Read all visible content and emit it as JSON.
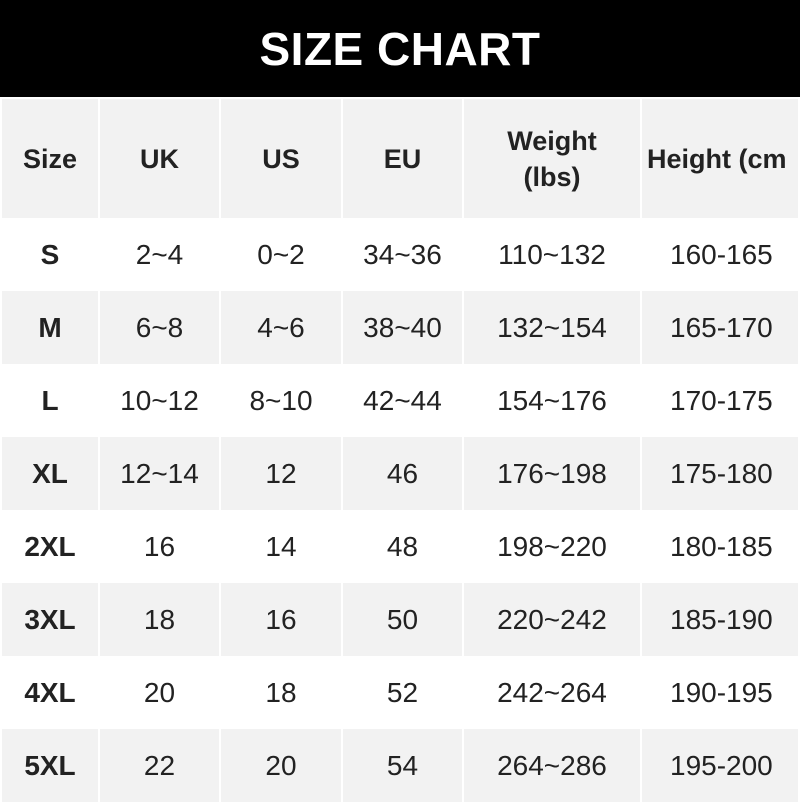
{
  "title": "SIZE CHART",
  "table": {
    "headers": [
      "Size",
      "UK",
      "US",
      "EU",
      "Weight\n(lbs)",
      "Height (cm"
    ],
    "rows": [
      [
        "S",
        "2~4",
        "0~2",
        "34~36",
        "110~132",
        "160-165"
      ],
      [
        "M",
        "6~8",
        "4~6",
        "38~40",
        "132~154",
        "165-170"
      ],
      [
        "L",
        "10~12",
        "8~10",
        "42~44",
        "154~176",
        "170-175"
      ],
      [
        "XL",
        "12~14",
        "12",
        "46",
        "176~198",
        "175-180"
      ],
      [
        "2XL",
        "16",
        "14",
        "48",
        "198~220",
        "180-185"
      ],
      [
        "3XL",
        "18",
        "16",
        "50",
        "220~242",
        "185-190"
      ],
      [
        "4XL",
        "20",
        "18",
        "52",
        "242~264",
        "190-195"
      ],
      [
        "5XL",
        "22",
        "20",
        "54",
        "264~286",
        "195-200"
      ]
    ]
  },
  "colors": {
    "banner": "#000000",
    "stripe": "#f2f2f2"
  }
}
